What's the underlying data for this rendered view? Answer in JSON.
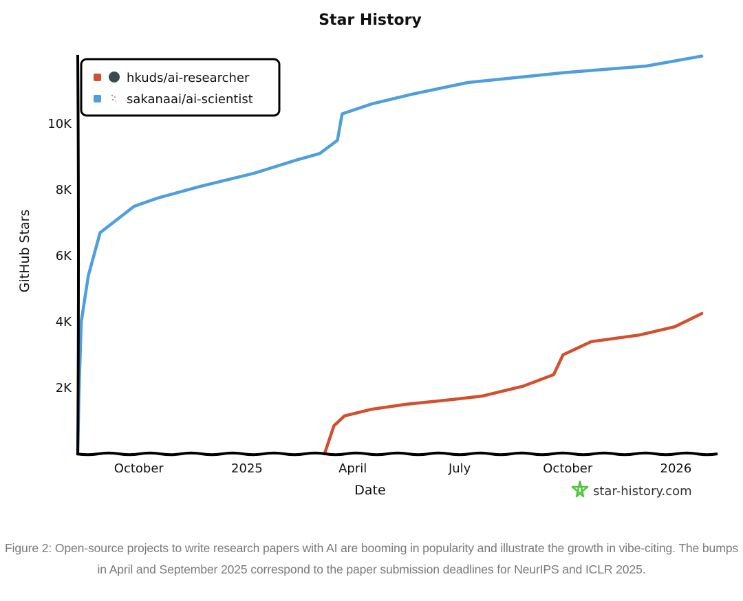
{
  "chart_data": {
    "type": "line",
    "title": "Star History",
    "xlabel": "Date",
    "ylabel": "GitHub Stars",
    "x_type": "date",
    "xlim": [
      "2024-08-10",
      "2026-01-23"
    ],
    "ylim": [
      0,
      12300
    ],
    "x_ticks": [
      {
        "date": "2024-10-01",
        "label": "October"
      },
      {
        "date": "2025-01-01",
        "label": "2025"
      },
      {
        "date": "2025-04-01",
        "label": "April"
      },
      {
        "date": "2025-07-01",
        "label": "July"
      },
      {
        "date": "2025-10-01",
        "label": "October"
      },
      {
        "date": "2026-01-01",
        "label": "2026"
      }
    ],
    "y_ticks": [
      {
        "value": 2000,
        "label": "2K"
      },
      {
        "value": 4000,
        "label": "4K"
      },
      {
        "value": 6000,
        "label": "6K"
      },
      {
        "value": 8000,
        "label": "8K"
      },
      {
        "value": 10000,
        "label": "10K"
      }
    ],
    "grid": false,
    "legend_placement": "top-left",
    "series": [
      {
        "name": "hkuds/ai-researcher",
        "color": "#d2502f",
        "points": [
          [
            "2025-03-08",
            0
          ],
          [
            "2025-03-16",
            850
          ],
          [
            "2025-03-25",
            1150
          ],
          [
            "2025-04-17",
            1350
          ],
          [
            "2025-05-16",
            1500
          ],
          [
            "2025-06-26",
            1650
          ],
          [
            "2025-07-20",
            1750
          ],
          [
            "2025-08-24",
            2050
          ],
          [
            "2025-09-19",
            2400
          ],
          [
            "2025-09-27",
            3000
          ],
          [
            "2025-10-21",
            3400
          ],
          [
            "2025-12-01",
            3600
          ],
          [
            "2025-12-31",
            3850
          ],
          [
            "2026-01-23",
            4250
          ]
        ]
      },
      {
        "name": "sakanaai/ai-scientist",
        "color": "#4e9fdb",
        "points": [
          [
            "2024-08-10",
            0
          ],
          [
            "2024-08-11",
            1800
          ],
          [
            "2024-08-13",
            4000
          ],
          [
            "2024-08-19",
            5400
          ],
          [
            "2024-08-29",
            6700
          ],
          [
            "2024-09-27",
            7500
          ],
          [
            "2024-10-17",
            7750
          ],
          [
            "2024-11-22",
            8100
          ],
          [
            "2024-12-15",
            8300
          ],
          [
            "2025-01-07",
            8500
          ],
          [
            "2025-02-12",
            8900
          ],
          [
            "2025-03-04",
            9100
          ],
          [
            "2025-03-19",
            9500
          ],
          [
            "2025-03-23",
            10300
          ],
          [
            "2025-04-17",
            10600
          ],
          [
            "2025-05-22",
            10900
          ],
          [
            "2025-07-08",
            11250
          ],
          [
            "2025-09-28",
            11550
          ],
          [
            "2025-12-07",
            11750
          ],
          [
            "2026-01-23",
            12050
          ]
        ]
      }
    ],
    "watermark": "star-history.com"
  },
  "caption": "Figure 2: Open-source projects to write research papers with AI are booming in popularity and illustrate the growth in vibe-citing. The bumps in April and September 2025 correspond to the paper submission deadlines for NeurIPS and ICLR 2025."
}
